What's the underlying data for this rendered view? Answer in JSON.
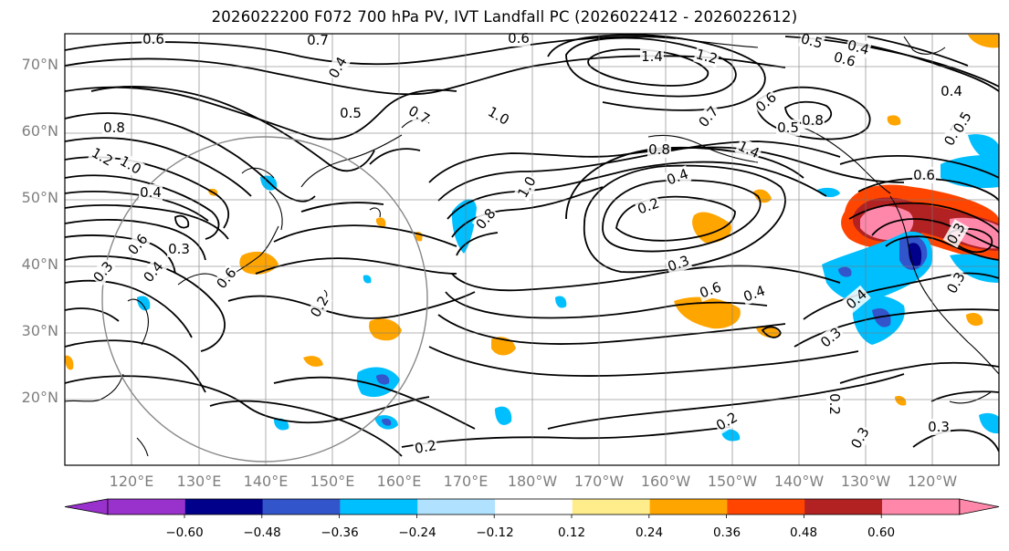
{
  "title": "2026022200 F072 700 hPa PV, IVT Landfall PC (2026022412 - 2026022612)",
  "lat_labels": [
    "70°N",
    "60°N",
    "50°N",
    "40°N",
    "30°N",
    "20°N"
  ],
  "lon_labels": [
    "120°E",
    "130°E",
    "140°E",
    "150°E",
    "160°E",
    "170°E",
    "180°W",
    "170°W",
    "160°W",
    "150°W",
    "140°W",
    "130°W",
    "120°W"
  ],
  "colorbar": {
    "ticks": [
      "−0.60",
      "−0.48",
      "−0.36",
      "−0.24",
      "−0.12",
      "0.12",
      "0.24",
      "0.36",
      "0.48",
      "0.60"
    ],
    "colors": [
      "#9932cc",
      "#00008b",
      "#3355cc",
      "#00bfff",
      "#b0e2ff",
      "#ffffff",
      "#ffec8b",
      "#ffa500",
      "#ff4500",
      "#b22222",
      "#ff88aa"
    ]
  },
  "contour_labels": [
    "0.6",
    "0.7",
    "0.6",
    "1.4",
    "1.2",
    "0.5",
    "0.4",
    "0.6",
    "0.4",
    "0.4",
    "0.5",
    "0.7",
    "1.0",
    "0.7",
    "0.6",
    "0.5",
    "0.8",
    "0.7",
    "0.8",
    "0.8",
    "1.4",
    "1.2",
    "1.0",
    "0.4",
    "0.6",
    "0.3",
    "0.3",
    "0.4",
    "0.6",
    "0.2",
    "1.0",
    "0.8",
    "0.4",
    "0.2",
    "0.3",
    "0.6",
    "0.4",
    "0.3",
    "0.4",
    "0.6",
    "0.5",
    "0.3",
    "0.3",
    "0.2",
    "0.3",
    "0.2",
    "0.2",
    "0.3"
  ]
}
